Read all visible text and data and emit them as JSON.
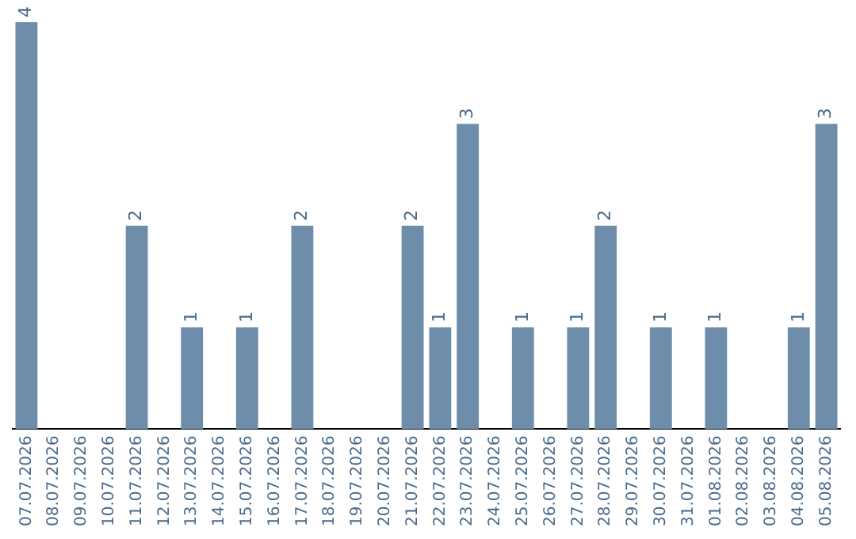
{
  "chart_data": {
    "type": "bar",
    "categories": [
      "07.07.2026",
      "08.07.2026",
      "09.07.2026",
      "10.07.2026",
      "11.07.2026",
      "12.07.2026",
      "13.07.2026",
      "14.07.2026",
      "15.07.2026",
      "16.07.2026",
      "17.07.2026",
      "18.07.2026",
      "19.07.2026",
      "20.07.2026",
      "21.07.2026",
      "22.07.2026",
      "23.07.2026",
      "24.07.2026",
      "25.07.2026",
      "26.07.2026",
      "27.07.2026",
      "28.07.2026",
      "29.07.2026",
      "30.07.2026",
      "31.07.2026",
      "01.08.2026",
      "02.08.2026",
      "03.08.2026",
      "04.08.2026",
      "05.08.2026"
    ],
    "values": [
      4,
      0,
      0,
      0,
      2,
      0,
      1,
      0,
      1,
      0,
      2,
      0,
      0,
      0,
      2,
      1,
      3,
      0,
      1,
      0,
      1,
      2,
      0,
      1,
      0,
      1,
      0,
      0,
      1,
      3
    ],
    "value_labels": [
      "4",
      null,
      null,
      null,
      "2",
      null,
      "1",
      null,
      "1",
      null,
      "2",
      null,
      null,
      null,
      "2",
      "1",
      "3",
      null,
      "1",
      null,
      "1",
      "2",
      null,
      "1",
      null,
      "1",
      null,
      null,
      "1",
      "3"
    ],
    "color": "#6d8dab",
    "tick_labels": "x",
    "grid": false,
    "legend": false
  }
}
